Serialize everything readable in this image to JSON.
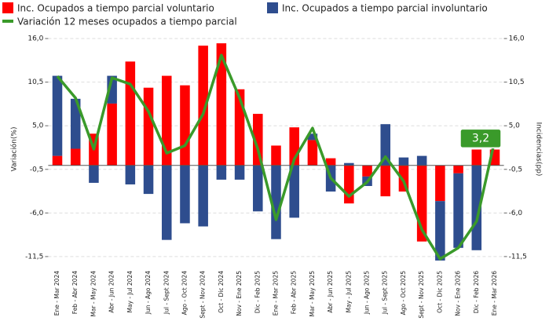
{
  "chart_data": {
    "type": "bar",
    "ylabel": "Variación(%)",
    "y2label": "Incidencias(pp)",
    "categories": [
      "Ene - Mar 2024",
      "Feb - Abr 2024",
      "Mar - May 2024",
      "Abr - Jun 2024",
      "May - Jul 2024",
      "Jun - Ago 2024",
      "Jul - Sept 2024",
      "Ago - Oct 2024",
      "Sept - Nov 2024",
      "Oct - Dic 2024",
      "Nov - Ene 2025",
      "Dic - Feb 2025",
      "Ene - Mar 2025",
      "Feb - Abr 2025",
      "Mar - May 2025",
      "Abr - Jun 2025",
      "May - Jul 2025",
      "Jun - Ago 2025",
      "Jul - Sept 2025",
      "Ago - Oct 2025",
      "Sept - Nov 2025",
      "Oct - Dic 2025",
      "Nov - Ene 2026",
      "Dic - Feb 2026",
      "Ene - Mar 2026"
    ],
    "series": [
      {
        "name": "Inc. Ocupados a tiempo parcial voluntario",
        "type": "bar",
        "axis": "y2",
        "color": "#ff0000",
        "values": [
          1.2,
          2.1,
          4.0,
          7.8,
          13.1,
          9.8,
          11.3,
          10.1,
          15.1,
          15.4,
          9.6,
          6.5,
          2.5,
          4.8,
          3.2,
          0.9,
          -4.8,
          -1.4,
          -3.9,
          -3.3,
          -9.6,
          -4.5,
          -1.0,
          2.0,
          2.0
        ]
      },
      {
        "name": "Inc. Ocupados a tiempo parcial involuntario",
        "type": "bar",
        "axis": "y2",
        "color": "#2e4d8e",
        "values": [
          10.1,
          6.3,
          -2.2,
          3.5,
          -2.4,
          -3.6,
          -9.4,
          -7.3,
          -7.7,
          -1.8,
          -1.8,
          -5.8,
          -9.3,
          -6.6,
          0.8,
          -3.3,
          0.3,
          -1.2,
          5.2,
          1.0,
          1.2,
          -7.5,
          -9.4,
          -10.7,
          0
        ]
      },
      {
        "name": "Variación 12 meses ocupados a tiempo parcial",
        "type": "line",
        "axis": "y",
        "color": "#3a9a2a",
        "values": [
          11.25,
          8.5,
          2.05,
          11.05,
          10.25,
          6.8,
          1.55,
          2.5,
          6.5,
          13.9,
          8.5,
          2.05,
          -6.85,
          0.8,
          4.7,
          -1.6,
          -3.9,
          -2.1,
          1.1,
          -2.0,
          -8.1,
          -11.8,
          -10.4,
          -7.05,
          3.2
        ],
        "value_labels": [
          null,
          null,
          null,
          null,
          null,
          null,
          null,
          null,
          null,
          null,
          null,
          null,
          null,
          null,
          null,
          null,
          null,
          null,
          null,
          null,
          null,
          null,
          null,
          null,
          "3,2"
        ]
      }
    ],
    "ylim": [
      -12.5,
      17
    ],
    "yticks": [
      {
        "value": 16,
        "label": "16,0"
      },
      {
        "value": 10.5,
        "label": "10,5"
      },
      {
        "value": 5,
        "label": "5,0"
      },
      {
        "value": -0.5,
        "label": "-0,5"
      },
      {
        "value": -6,
        "label": "-6,0"
      },
      {
        "value": -11.5,
        "label": "-11,5"
      }
    ],
    "y2lim": [
      -12.5,
      17
    ],
    "y2ticks": [
      {
        "value": 16,
        "label": "16,0"
      },
      {
        "value": 10.5,
        "label": "10,5"
      },
      {
        "value": 5,
        "label": "5,0"
      },
      {
        "value": -0.5,
        "label": "-0,5"
      },
      {
        "value": -6,
        "label": "-6,0"
      },
      {
        "value": -11.5,
        "label": "-11,5"
      }
    ],
    "grid": true,
    "legend": "top"
  }
}
